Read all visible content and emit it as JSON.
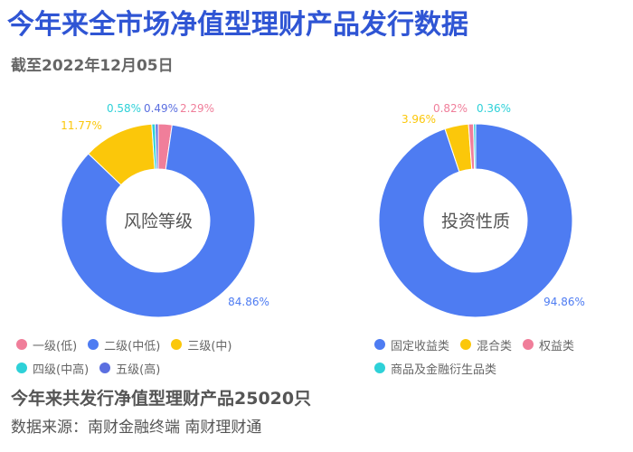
{
  "header": {
    "title": "今年来全市场净值型理财产品发行数据",
    "subtitle": "截至2022年12月05日"
  },
  "chart_data": [
    {
      "type": "pie",
      "title": "风险等级",
      "categories": [
        "一级(低)",
        "二级(中低)",
        "三级(中)",
        "四级(中高)",
        "五级(高)"
      ],
      "values": [
        2.29,
        84.86,
        11.77,
        0.58,
        0.49
      ],
      "labels": [
        "2.29%",
        "84.86%",
        "11.77%",
        "0.58%",
        "0.49%"
      ],
      "colors": [
        "#f07e9a",
        "#4e7cf2",
        "#fbc70a",
        "#2ed1d8",
        "#5b6fe0"
      ]
    },
    {
      "type": "pie",
      "title": "投资性质",
      "categories": [
        "固定收益类",
        "混合类",
        "权益类",
        "商品及金融衍生品类"
      ],
      "values": [
        94.86,
        3.96,
        0.82,
        0.36
      ],
      "labels": [
        "94.86%",
        "3.96%",
        "0.82%",
        "0.36%"
      ],
      "colors": [
        "#4e7cf2",
        "#fbc70a",
        "#f07e9a",
        "#2ed1d8"
      ]
    }
  ],
  "footer": {
    "summary": "今年来共发行净值型理财产品25020只",
    "source": "数据来源：南财金融终端 南财理财通"
  }
}
